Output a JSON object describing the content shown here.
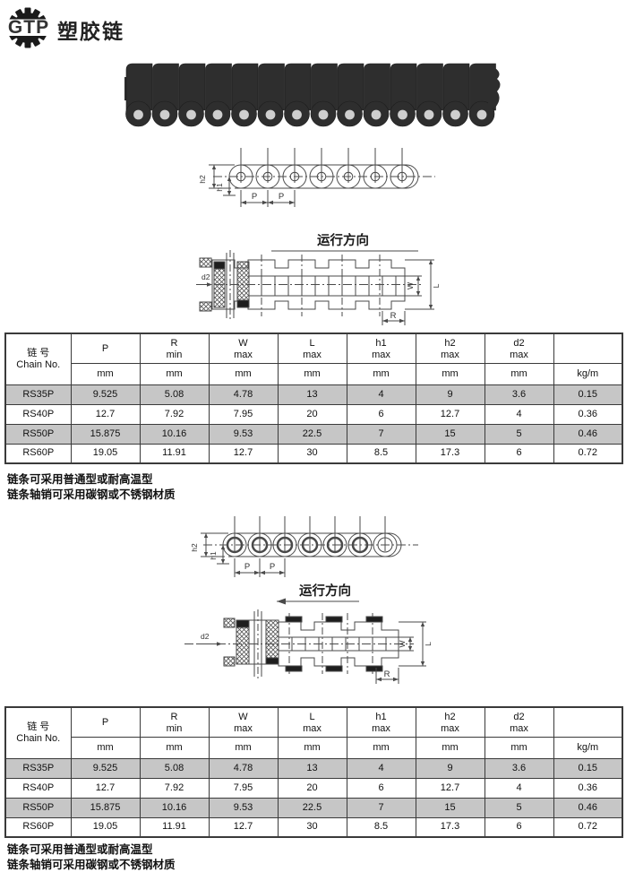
{
  "header": {
    "logo_text": "GTP",
    "title": "塑胶链"
  },
  "diagram_labels": {
    "direction": "运行方向",
    "p": "P",
    "r": "R",
    "w": "W",
    "l": "L",
    "h1": "h1",
    "h2": "h2",
    "d2": "d2"
  },
  "spec_table": {
    "chain_col_cn": "链 号",
    "chain_col_en": "Chain No.",
    "columns": [
      {
        "name": "P",
        "sub": "",
        "unit": "mm"
      },
      {
        "name": "R",
        "sub": "min",
        "unit": "mm"
      },
      {
        "name": "W",
        "sub": "max",
        "unit": "mm"
      },
      {
        "name": "L",
        "sub": "max",
        "unit": "mm"
      },
      {
        "name": "h1",
        "sub": "max",
        "unit": "mm"
      },
      {
        "name": "h2",
        "sub": "max",
        "unit": "mm"
      },
      {
        "name": "d2",
        "sub": "max",
        "unit": "mm"
      },
      {
        "name": "",
        "sub": "",
        "unit": "kg/m"
      }
    ],
    "rows": [
      {
        "chain_no": "RS35P",
        "values": [
          "9.525",
          "5.08",
          "4.78",
          "13",
          "4",
          "9",
          "3.6",
          "0.15"
        ]
      },
      {
        "chain_no": "RS40P",
        "values": [
          "12.7",
          "7.92",
          "7.95",
          "20",
          "6",
          "12.7",
          "4",
          "0.36"
        ]
      },
      {
        "chain_no": "RS50P",
        "values": [
          "15.875",
          "10.16",
          "9.53",
          "22.5",
          "7",
          "15",
          "5",
          "0.46"
        ]
      },
      {
        "chain_no": "RS60P",
        "values": [
          "19.05",
          "11.91",
          "12.7",
          "30",
          "8.5",
          "17.3",
          "6",
          "0.72"
        ]
      }
    ]
  },
  "notes": [
    "链条可采用普通型或耐高温型",
    "链条轴销可采用碳钢或不锈钢材质"
  ],
  "colors": {
    "row_alt": "#c6c6c6",
    "table_border": "#3a3a3a",
    "drawing_line": "#4a4a4a",
    "chain_fill": "#2e2e2e"
  }
}
